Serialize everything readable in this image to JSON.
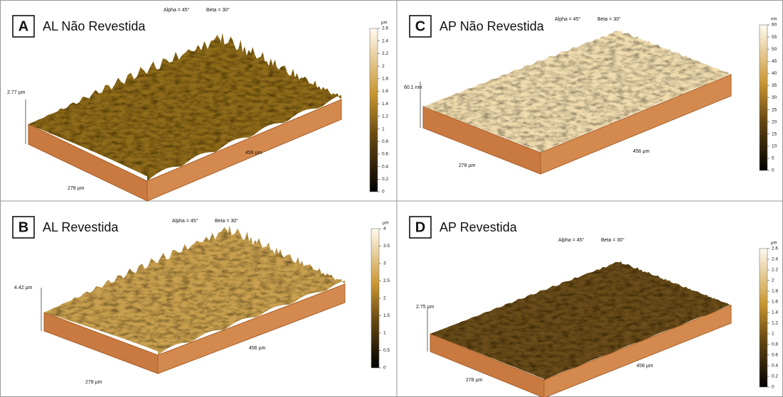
{
  "panels": [
    {
      "letter": "A",
      "title": "AL Não Revestida",
      "alpha": "Alpha = 45°",
      "beta": "Beta = 30°",
      "height": "2.77 µm",
      "x_label": "278 µm",
      "y_label": "456 µm",
      "unit": "µm",
      "colorbar_ticks": [
        0,
        0.2,
        0.4,
        0.6,
        0.8,
        1,
        1.2,
        1.4,
        1.6,
        1.8,
        2,
        2.2,
        2.4,
        2.6
      ]
    },
    {
      "letter": "B",
      "title": "AL Revestida",
      "alpha": "Alpha = 45°",
      "beta": "Beta = 30°",
      "height": "4.42 µm",
      "x_label": "278 µm",
      "y_label": "456 µm",
      "unit": "µm",
      "colorbar_ticks": [
        0,
        0.5,
        1,
        1.5,
        2,
        2.5,
        3,
        3.5,
        4
      ]
    },
    {
      "letter": "C",
      "title": "AP Não Revestida",
      "alpha": "Alpha = 45°",
      "beta": "Beta = 30°",
      "height": "60.1 nm",
      "x_label": "278 µm",
      "y_label": "456 µm",
      "unit": "nm",
      "colorbar_ticks": [
        0,
        5,
        10,
        15,
        20,
        25,
        30,
        35,
        40,
        45,
        50,
        55,
        60
      ]
    },
    {
      "letter": "D",
      "title": "AP Revestida",
      "alpha": "Alpha = 45°",
      "beta": "Beta = 30°",
      "height": "2.75 µm",
      "x_label": "278 µm",
      "y_label": "456 µm",
      "unit": "µm",
      "colorbar_ticks": [
        0,
        0.2,
        0.4,
        0.6,
        0.8,
        1,
        1.2,
        1.4,
        1.6,
        1.8,
        2,
        2.2,
        2.4,
        2.6
      ]
    }
  ]
}
